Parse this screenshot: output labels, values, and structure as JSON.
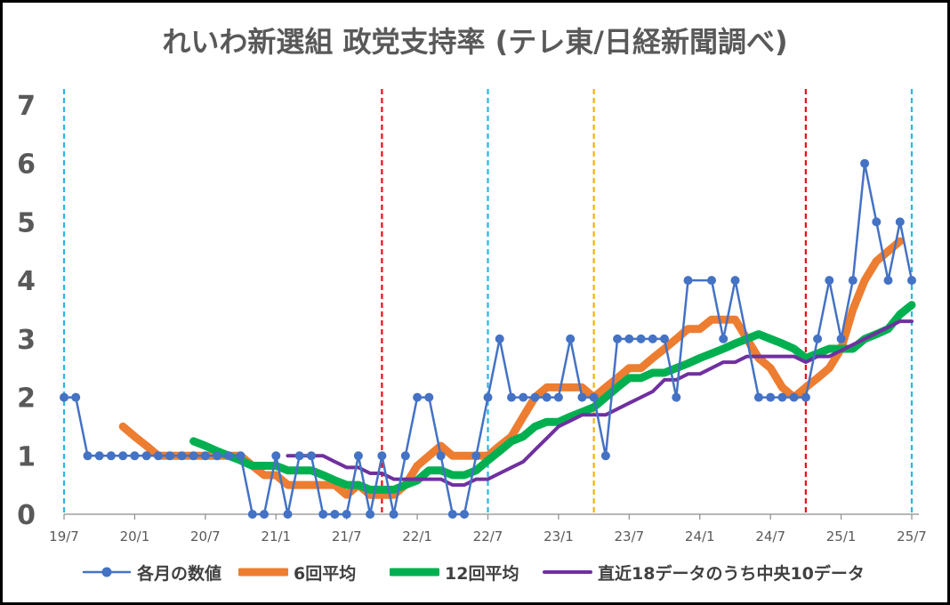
{
  "chart_data": {
    "type": "line",
    "title": "れいわ新選組 政党支持率 (テレ東/日経新聞調べ)",
    "xlabel": "",
    "ylabel": "",
    "ylim": [
      0,
      7
    ],
    "y_ticks": [
      "0",
      "1",
      "2",
      "3",
      "4",
      "5",
      "6",
      "7"
    ],
    "x_range": [
      "2019-07",
      "2025-07"
    ],
    "x_ticks": [
      "19/7",
      "20/1",
      "20/7",
      "21/1",
      "21/7",
      "22/1",
      "22/7",
      "23/1",
      "23/7",
      "24/1",
      "24/7",
      "25/1",
      "25/7"
    ],
    "grid": false,
    "legend_position": "bottom",
    "vertical_markers": [
      {
        "x": "2019-07",
        "color": "#29B6E8"
      },
      {
        "x": "2021-10",
        "color": "#E8101A"
      },
      {
        "x": "2022-07",
        "color": "#29B6E8"
      },
      {
        "x": "2023-04",
        "color": "#F4B400"
      },
      {
        "x": "2024-10",
        "color": "#E8101A"
      },
      {
        "x": "2025-07",
        "color": "#29B6E8"
      }
    ],
    "series": [
      {
        "name": "各月の数値",
        "color": "#4472C4",
        "style": "markers",
        "points": [
          [
            "2019-07",
            2
          ],
          [
            "2019-08",
            2
          ],
          [
            "2019-09",
            1
          ],
          [
            "2019-10",
            1
          ],
          [
            "2019-11",
            1
          ],
          [
            "2019-12",
            1
          ],
          [
            "2020-01",
            1
          ],
          [
            "2020-02",
            1
          ],
          [
            "2020-03",
            1
          ],
          [
            "2020-04",
            1
          ],
          [
            "2020-05",
            1
          ],
          [
            "2020-06",
            1
          ],
          [
            "2020-07",
            1
          ],
          [
            "2020-08",
            1
          ],
          [
            "2020-09",
            1
          ],
          [
            "2020-10",
            1
          ],
          [
            "2020-11",
            0
          ],
          [
            "2020-12",
            0
          ],
          [
            "2021-01",
            1
          ],
          [
            "2021-02",
            0
          ],
          [
            "2021-03",
            1
          ],
          [
            "2021-04",
            1
          ],
          [
            "2021-05",
            0
          ],
          [
            "2021-06",
            0
          ],
          [
            "2021-07",
            0
          ],
          [
            "2021-08",
            1
          ],
          [
            "2021-09",
            0
          ],
          [
            "2021-10",
            1
          ],
          [
            "2021-11",
            0
          ],
          [
            "2021-12",
            1
          ],
          [
            "2022-01",
            2
          ],
          [
            "2022-02",
            2
          ],
          [
            "2022-03",
            1
          ],
          [
            "2022-04",
            0
          ],
          [
            "2022-05",
            0
          ],
          [
            "2022-06",
            1
          ],
          [
            "2022-07",
            2
          ],
          [
            "2022-08",
            3
          ],
          [
            "2022-09",
            2
          ],
          [
            "2022-10",
            2
          ],
          [
            "2022-11",
            2
          ],
          [
            "2022-12",
            2
          ],
          [
            "2023-01",
            2
          ],
          [
            "2023-02",
            3
          ],
          [
            "2023-03",
            2
          ],
          [
            "2023-04",
            2
          ],
          [
            "2023-05",
            1
          ],
          [
            "2023-06",
            3
          ],
          [
            "2023-07",
            3
          ],
          [
            "2023-08",
            3
          ],
          [
            "2023-09",
            3
          ],
          [
            "2023-10",
            3
          ],
          [
            "2023-11",
            2
          ],
          [
            "2023-12",
            4
          ],
          [
            "2024-02",
            4
          ],
          [
            "2024-03",
            3
          ],
          [
            "2024-04",
            4
          ],
          [
            "2024-06",
            2
          ],
          [
            "2024-07",
            2
          ],
          [
            "2024-08",
            2
          ],
          [
            "2024-09",
            2
          ],
          [
            "2024-10",
            2
          ],
          [
            "2024-11",
            3
          ],
          [
            "2024-12",
            4
          ],
          [
            "2025-01",
            3
          ],
          [
            "2025-02",
            4
          ],
          [
            "2025-03",
            6
          ],
          [
            "2025-04",
            5
          ],
          [
            "2025-05",
            4
          ],
          [
            "2025-06",
            5
          ],
          [
            "2025-07",
            4
          ]
        ]
      },
      {
        "name": "6回平均",
        "color": "#ED7D31",
        "style": "thick",
        "points": [
          [
            "2019-12",
            1.5
          ],
          [
            "2020-01",
            1.33
          ],
          [
            "2020-02",
            1.17
          ],
          [
            "2020-03",
            1.0
          ],
          [
            "2020-06",
            1.0
          ],
          [
            "2020-10",
            1.0
          ],
          [
            "2020-11",
            0.83
          ],
          [
            "2020-12",
            0.67
          ],
          [
            "2021-01",
            0.67
          ],
          [
            "2021-02",
            0.5
          ],
          [
            "2021-06",
            0.5
          ],
          [
            "2021-07",
            0.33
          ],
          [
            "2021-08",
            0.5
          ],
          [
            "2021-09",
            0.33
          ],
          [
            "2021-11",
            0.33
          ],
          [
            "2021-12",
            0.5
          ],
          [
            "2022-01",
            0.83
          ],
          [
            "2022-02",
            1.0
          ],
          [
            "2022-03",
            1.17
          ],
          [
            "2022-04",
            1.0
          ],
          [
            "2022-06",
            1.0
          ],
          [
            "2022-07",
            1.0
          ],
          [
            "2022-08",
            1.17
          ],
          [
            "2022-09",
            1.33
          ],
          [
            "2022-10",
            1.67
          ],
          [
            "2022-11",
            2.0
          ],
          [
            "2022-12",
            2.17
          ],
          [
            "2023-01",
            2.17
          ],
          [
            "2023-02",
            2.17
          ],
          [
            "2023-03",
            2.17
          ],
          [
            "2023-04",
            2.0
          ],
          [
            "2023-05",
            2.17
          ],
          [
            "2023-06",
            2.33
          ],
          [
            "2023-07",
            2.5
          ],
          [
            "2023-08",
            2.5
          ],
          [
            "2023-09",
            2.67
          ],
          [
            "2023-10",
            2.83
          ],
          [
            "2023-11",
            3.0
          ],
          [
            "2023-12",
            3.17
          ],
          [
            "2024-01",
            3.17
          ],
          [
            "2024-02",
            3.33
          ],
          [
            "2024-03",
            3.33
          ],
          [
            "2024-04",
            3.33
          ],
          [
            "2024-05",
            3.0
          ],
          [
            "2024-06",
            2.67
          ],
          [
            "2024-07",
            2.5
          ],
          [
            "2024-08",
            2.17
          ],
          [
            "2024-09",
            2.0
          ],
          [
            "2024-10",
            2.17
          ],
          [
            "2024-11",
            2.33
          ],
          [
            "2024-12",
            2.5
          ],
          [
            "2025-01",
            2.83
          ],
          [
            "2025-02",
            3.5
          ],
          [
            "2025-03",
            4.0
          ],
          [
            "2025-04",
            4.33
          ],
          [
            "2025-05",
            4.5
          ],
          [
            "2025-06",
            4.67
          ]
        ]
      },
      {
        "name": "12回平均",
        "color": "#00B050",
        "style": "thick",
        "points": [
          [
            "2020-06",
            1.25
          ],
          [
            "2020-07",
            1.17
          ],
          [
            "2020-08",
            1.08
          ],
          [
            "2020-09",
            1.0
          ],
          [
            "2020-10",
            0.92
          ],
          [
            "2020-11",
            0.83
          ],
          [
            "2020-12",
            0.83
          ],
          [
            "2021-01",
            0.83
          ],
          [
            "2021-02",
            0.75
          ],
          [
            "2021-04",
            0.75
          ],
          [
            "2021-05",
            0.67
          ],
          [
            "2021-06",
            0.58
          ],
          [
            "2021-07",
            0.5
          ],
          [
            "2021-08",
            0.5
          ],
          [
            "2021-09",
            0.42
          ],
          [
            "2021-11",
            0.42
          ],
          [
            "2021-12",
            0.5
          ],
          [
            "2022-01",
            0.58
          ],
          [
            "2022-02",
            0.75
          ],
          [
            "2022-03",
            0.75
          ],
          [
            "2022-04",
            0.67
          ],
          [
            "2022-05",
            0.67
          ],
          [
            "2022-06",
            0.75
          ],
          [
            "2022-07",
            0.92
          ],
          [
            "2022-08",
            1.08
          ],
          [
            "2022-09",
            1.25
          ],
          [
            "2022-10",
            1.33
          ],
          [
            "2022-11",
            1.5
          ],
          [
            "2022-12",
            1.58
          ],
          [
            "2023-01",
            1.58
          ],
          [
            "2023-02",
            1.67
          ],
          [
            "2023-03",
            1.75
          ],
          [
            "2023-04",
            1.83
          ],
          [
            "2023-05",
            2.0
          ],
          [
            "2023-06",
            2.17
          ],
          [
            "2023-07",
            2.33
          ],
          [
            "2023-08",
            2.33
          ],
          [
            "2023-09",
            2.42
          ],
          [
            "2023-10",
            2.42
          ],
          [
            "2023-11",
            2.5
          ],
          [
            "2023-12",
            2.58
          ],
          [
            "2024-01",
            2.67
          ],
          [
            "2024-02",
            2.75
          ],
          [
            "2024-03",
            2.83
          ],
          [
            "2024-04",
            2.92
          ],
          [
            "2024-05",
            3.0
          ],
          [
            "2024-06",
            3.08
          ],
          [
            "2024-07",
            3.0
          ],
          [
            "2024-08",
            2.92
          ],
          [
            "2024-09",
            2.83
          ],
          [
            "2024-10",
            2.67
          ],
          [
            "2024-11",
            2.75
          ],
          [
            "2024-12",
            2.83
          ],
          [
            "2025-01",
            2.83
          ],
          [
            "2025-02",
            2.83
          ],
          [
            "2025-03",
            3.0
          ],
          [
            "2025-04",
            3.08
          ],
          [
            "2025-05",
            3.17
          ],
          [
            "2025-06",
            3.42
          ],
          [
            "2025-07",
            3.58
          ]
        ]
      },
      {
        "name": "直近18データのうち中央10データ",
        "color": "#7030A0",
        "style": "medium",
        "points": [
          [
            "2021-02",
            1.0
          ],
          [
            "2021-04",
            1.0
          ],
          [
            "2021-05",
            1.0
          ],
          [
            "2021-06",
            0.9
          ],
          [
            "2021-07",
            0.8
          ],
          [
            "2021-08",
            0.8
          ],
          [
            "2021-09",
            0.7
          ],
          [
            "2021-10",
            0.7
          ],
          [
            "2021-11",
            0.6
          ],
          [
            "2022-03",
            0.6
          ],
          [
            "2022-04",
            0.5
          ],
          [
            "2022-05",
            0.5
          ],
          [
            "2022-06",
            0.6
          ],
          [
            "2022-07",
            0.6
          ],
          [
            "2022-08",
            0.7
          ],
          [
            "2022-09",
            0.8
          ],
          [
            "2022-10",
            0.9
          ],
          [
            "2022-11",
            1.1
          ],
          [
            "2022-12",
            1.3
          ],
          [
            "2023-01",
            1.5
          ],
          [
            "2023-02",
            1.6
          ],
          [
            "2023-03",
            1.7
          ],
          [
            "2023-04",
            1.7
          ],
          [
            "2023-05",
            1.7
          ],
          [
            "2023-06",
            1.8
          ],
          [
            "2023-07",
            1.9
          ],
          [
            "2023-08",
            2.0
          ],
          [
            "2023-09",
            2.1
          ],
          [
            "2023-10",
            2.3
          ],
          [
            "2023-11",
            2.3
          ],
          [
            "2023-12",
            2.4
          ],
          [
            "2024-01",
            2.4
          ],
          [
            "2024-02",
            2.5
          ],
          [
            "2024-03",
            2.6
          ],
          [
            "2024-04",
            2.6
          ],
          [
            "2024-05",
            2.7
          ],
          [
            "2024-09",
            2.7
          ],
          [
            "2024-10",
            2.6
          ],
          [
            "2024-11",
            2.7
          ],
          [
            "2024-12",
            2.7
          ],
          [
            "2025-01",
            2.8
          ],
          [
            "2025-02",
            2.9
          ],
          [
            "2025-03",
            3.0
          ],
          [
            "2025-04",
            3.1
          ],
          [
            "2025-05",
            3.2
          ],
          [
            "2025-06",
            3.3
          ],
          [
            "2025-07",
            3.3
          ]
        ]
      }
    ]
  }
}
